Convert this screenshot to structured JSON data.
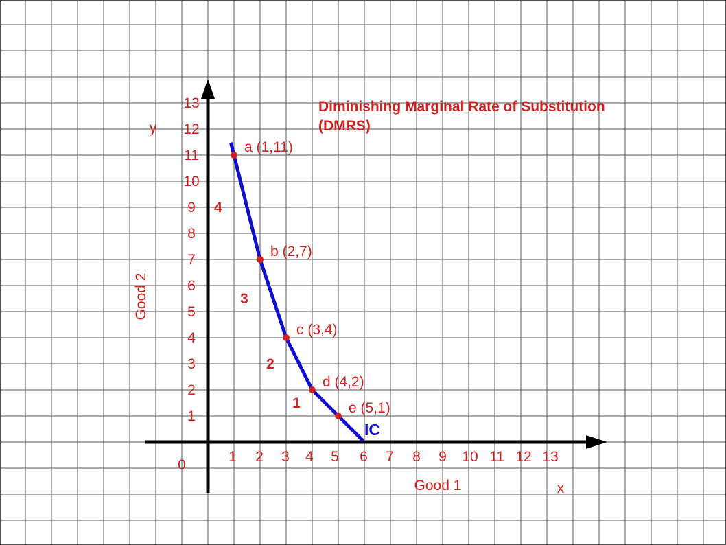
{
  "chart_data": {
    "type": "line",
    "title": "Diminishing Marginal Rate of Substitution",
    "subtitle": "(DMRS)",
    "xlabel": "Good 1",
    "ylabel": "Good 2",
    "x_axis_letter": "x",
    "y_axis_letter": "y",
    "origin_label": "0",
    "xlim": [
      0,
      13
    ],
    "ylim": [
      0,
      13
    ],
    "x_ticks": [
      "1",
      "2",
      "3",
      "4",
      "5",
      "6",
      "7",
      "8",
      "9",
      "10",
      "11",
      "12",
      "13"
    ],
    "y_ticks": [
      "1",
      "2",
      "3",
      "4",
      "5",
      "6",
      "7",
      "8",
      "9",
      "10",
      "11",
      "12",
      "13"
    ],
    "grid": true,
    "curve_label": "IC",
    "series": [
      {
        "name": "IC",
        "points": [
          {
            "x": 1,
            "y": 11,
            "label": "a (1,11)"
          },
          {
            "x": 2,
            "y": 7,
            "label": "b (2,7)"
          },
          {
            "x": 3,
            "y": 4,
            "label": "c (3,4)"
          },
          {
            "x": 4,
            "y": 2,
            "label": "d (4,2)"
          },
          {
            "x": 5,
            "y": 1,
            "label": "e (5,1)"
          }
        ]
      }
    ],
    "mrs_labels": [
      {
        "between": [
          "a",
          "b"
        ],
        "text": "4"
      },
      {
        "between": [
          "b",
          "c"
        ],
        "text": "3"
      },
      {
        "between": [
          "c",
          "d"
        ],
        "text": "2"
      },
      {
        "between": [
          "d",
          "e"
        ],
        "text": "1"
      }
    ],
    "colors": {
      "curve": "#1010cc",
      "labels": "#cc2222",
      "axis": "#000000",
      "grid": "#555555"
    }
  }
}
